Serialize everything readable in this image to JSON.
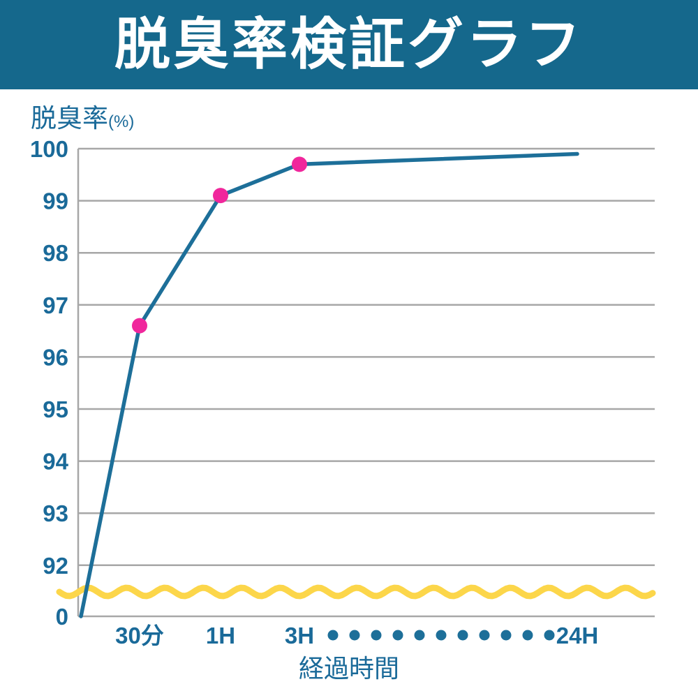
{
  "header": {
    "title": "脱臭率検証グラフ"
  },
  "colors": {
    "header_bg": "#15688c",
    "header_text": "#ffffff",
    "axis_text": "#1a6a99",
    "line": "#1d6f99",
    "marker": "#f0279c",
    "grid": "#a7a7a7",
    "wave": "#fcd64a",
    "gap_dots": "#1d6f99"
  },
  "chart_data": {
    "type": "line",
    "title": "脱臭率検証グラフ",
    "ylabel": "脱臭率",
    "ylabel_unit": "(%)",
    "xlabel": "経過時間",
    "y_ticks": [
      100,
      99,
      98,
      97,
      96,
      95,
      94,
      93,
      92,
      0
    ],
    "y_axis_break": true,
    "ylim_visible": [
      92,
      100
    ],
    "grid": true,
    "legend": "none",
    "x_tick_labels": [
      "30分",
      "1H",
      "3H",
      "24H"
    ],
    "x_gap_dot_count": 11,
    "series": [
      {
        "name": "脱臭率",
        "points": [
          {
            "x_label": "0",
            "value": 0,
            "marker": false
          },
          {
            "x_label": "30分",
            "value": 96.6,
            "marker": true
          },
          {
            "x_label": "1H",
            "value": 99.1,
            "marker": true
          },
          {
            "x_label": "3H",
            "value": 99.7,
            "marker": true
          },
          {
            "x_label": "24H",
            "value": 99.9,
            "marker": false
          }
        ]
      }
    ]
  }
}
